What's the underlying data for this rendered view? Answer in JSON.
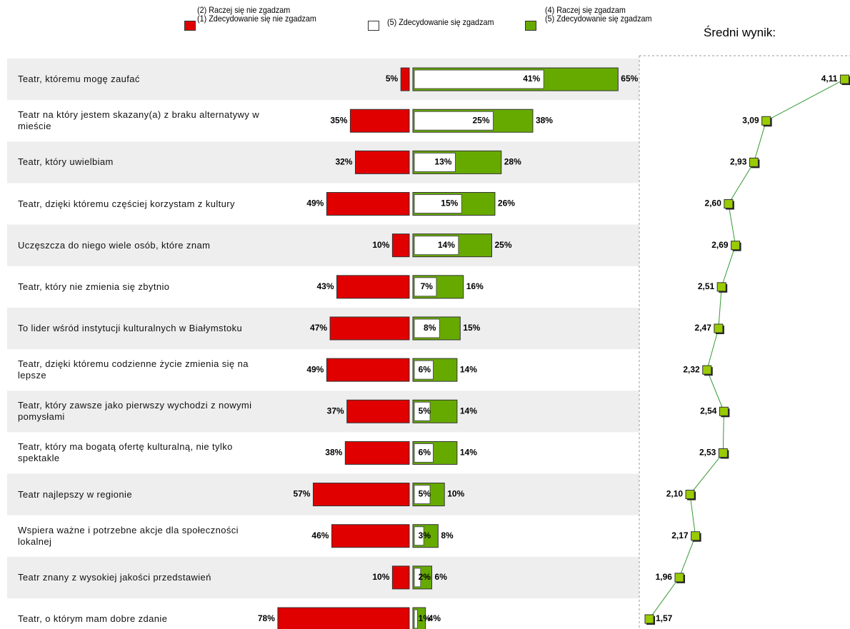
{
  "chart_data": [
    {
      "type": "bar",
      "categories": [
        "Teatr, któremu mogę zaufać",
        "Teatr na który jestem skazany(a) z braku alternatywy w mieście",
        "Teatr, który uwielbiam",
        "Teatr, dzięki któremu częściej korzystam z kultury",
        "Uczęszcza do niego wiele osób, które znam",
        "Teatr, który nie zmienia się zbytnio",
        "To lider wśród instytucji kulturalnych w Białymstoku",
        "Teatr, dzięki któremu codzienne życie zmienia się na lepsze",
        "Teatr, który zawsze jako pierwszy wychodzi z nowymi pomysłami",
        "Teatr, który ma bogatą ofertę kulturalną, nie tylko spektakle",
        "Teatr najlepszy w regionie",
        "Wspiera ważne i potrzebne akcje dla społeczności lokalnej",
        "Teatr znany z wysokiej jakości przedstawień",
        "Teatr, o którym mam dobre zdanie"
      ],
      "series": [
        {
          "name": "(2) Raczej się nie zgadzam\n(1) Zdecydowanie się nie zgadzam",
          "color": "#e00000",
          "values": [
            5,
            35,
            32,
            49,
            10,
            43,
            47,
            49,
            37,
            38,
            57,
            46,
            10,
            78
          ],
          "value_labels": [
            "5%",
            "35%",
            "32%",
            "49%",
            "10%",
            "43%",
            "47%",
            "49%",
            "37%",
            "38%",
            "57%",
            "46%",
            "10%",
            "78%"
          ]
        },
        {
          "name": "(5) Zdecydowanie się zgadzam",
          "color": "#ffffff",
          "values": [
            41,
            25,
            13,
            15,
            14,
            7,
            8,
            6,
            5,
            6,
            5,
            3,
            2,
            1
          ],
          "value_labels": [
            "41%",
            "25%",
            "13%",
            "15%",
            "14%",
            "7%",
            "8%",
            "6%",
            "5%",
            "6%",
            "5%",
            "3%",
            "2%",
            "1%"
          ]
        },
        {
          "name": "(4) Raczej się zgadzam\n(5) Zdecydowanie się zgadzam",
          "color": "#66aa00",
          "values": [
            65,
            38,
            28,
            26,
            25,
            16,
            15,
            14,
            14,
            14,
            10,
            8,
            6,
            4
          ],
          "value_labels": [
            "65%",
            "38%",
            "28%",
            "26%",
            "25%",
            "16%",
            "15%",
            "14%",
            "14%",
            "14%",
            "10%",
            "8%",
            "6%",
            "4%"
          ]
        }
      ]
    },
    {
      "type": "line",
      "title": "Średni wynik:",
      "color": "#99cc00",
      "xlim": [
        1.44,
        4.18
      ],
      "values": [
        4.11,
        3.09,
        2.93,
        2.6,
        2.69,
        2.51,
        2.47,
        2.32,
        2.54,
        2.53,
        2.1,
        2.17,
        1.96,
        1.57
      ],
      "value_labels": [
        "4,11",
        "3,09",
        "2,93",
        "2,60",
        "2,69",
        "2,51",
        "2,47",
        "2,32",
        "2,54",
        "2,53",
        "2,10",
        "2,17",
        "1,96",
        "1,57"
      ]
    }
  ]
}
